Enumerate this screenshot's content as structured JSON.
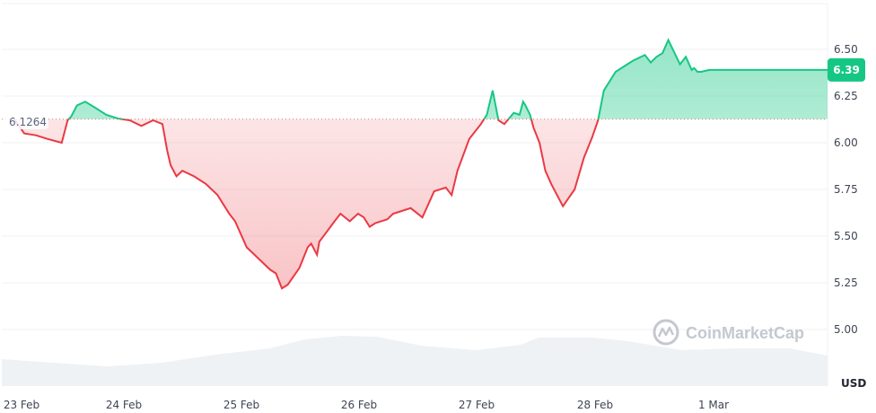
{
  "chart_data": {
    "type": "area",
    "watermark": "CoinMarketCap",
    "unit": "USD",
    "baseline": 6.1264,
    "baseline_label": "6.1264",
    "current_value": 6.39,
    "current_label": "6.39",
    "ylim": [
      4.84,
      6.67
    ],
    "y_ticks": [
      {
        "value": 6.5,
        "label": "6.50"
      },
      {
        "value": 6.25,
        "label": "6.25"
      },
      {
        "value": 6.0,
        "label": "6.00"
      },
      {
        "value": 5.75,
        "label": "5.75"
      },
      {
        "value": 5.5,
        "label": "5.50"
      },
      {
        "value": 5.25,
        "label": "5.25"
      },
      {
        "value": 5.0,
        "label": "5.00"
      }
    ],
    "x_ticks": [
      {
        "value": 0.0,
        "label": "23 Feb"
      },
      {
        "value": 1.0,
        "label": "24 Feb"
      },
      {
        "value": 2.0,
        "label": "25 Feb"
      },
      {
        "value": 3.0,
        "label": "26 Feb"
      },
      {
        "value": 4.0,
        "label": "27 Feb"
      },
      {
        "value": 5.0,
        "label": "28 Feb"
      },
      {
        "value": 6.0,
        "label": "1 Mar"
      }
    ],
    "xlim": [
      0.0,
      6.96
    ],
    "grid": true,
    "colors": {
      "up": "#16c784",
      "down": "#ea3943",
      "volume": "#eff2f5",
      "grid": "#eff2f5"
    },
    "series": [
      {
        "values_x": [
          0.0,
          0.1,
          0.2,
          0.3,
          0.42,
          0.47,
          0.5,
          0.55,
          0.62,
          0.7,
          0.8,
          0.9,
          1.0,
          1.1,
          1.2,
          1.28,
          1.32,
          1.35,
          1.4,
          1.45,
          1.55,
          1.65,
          1.75,
          1.85,
          1.9,
          2.0,
          2.1,
          2.2,
          2.25,
          2.3,
          2.35,
          2.45,
          2.52,
          2.55,
          2.6,
          2.62,
          2.68,
          2.75,
          2.8,
          2.88,
          2.95,
          3.0,
          3.05,
          3.1,
          3.2,
          3.25,
          3.3,
          3.4,
          3.5,
          3.6,
          3.7,
          3.75,
          3.8,
          3.9,
          4.0,
          4.05,
          4.1,
          4.15,
          4.2,
          4.28,
          4.33,
          4.36,
          4.38,
          4.42,
          4.45,
          4.5,
          4.55,
          4.6,
          4.7,
          4.8,
          4.88,
          4.95,
          5.0,
          5.05,
          5.15,
          5.25,
          5.3,
          5.4,
          5.45,
          5.5,
          5.55,
          5.6,
          5.7,
          5.75,
          5.8,
          5.82,
          5.85,
          5.88,
          5.95,
          6.0,
          6.05,
          6.15,
          6.25,
          6.35,
          6.45,
          6.55,
          6.6,
          6.65,
          6.72,
          6.78,
          6.82,
          6.88,
          6.92,
          6.96
        ],
        "values": [
          6.14,
          6.05,
          6.04,
          6.02,
          6.0,
          6.12,
          6.14,
          6.2,
          6.22,
          6.19,
          6.15,
          6.13,
          6.12,
          6.09,
          6.12,
          6.1,
          5.96,
          5.88,
          5.82,
          5.85,
          5.82,
          5.78,
          5.72,
          5.62,
          5.58,
          5.44,
          5.38,
          5.32,
          5.3,
          5.22,
          5.24,
          5.33,
          5.44,
          5.46,
          5.4,
          5.47,
          5.52,
          5.58,
          5.62,
          5.58,
          5.62,
          5.6,
          5.55,
          5.57,
          5.59,
          5.62,
          5.63,
          5.65,
          5.6,
          5.74,
          5.76,
          5.72,
          5.85,
          6.02,
          6.1,
          6.15,
          6.28,
          6.12,
          6.1,
          6.16,
          6.15,
          6.22,
          6.2,
          6.15,
          6.08,
          6.0,
          5.85,
          5.78,
          5.66,
          5.75,
          5.92,
          6.03,
          6.12,
          6.28,
          6.38,
          6.42,
          6.44,
          6.47,
          6.43,
          6.46,
          6.48,
          6.55,
          6.42,
          6.46,
          6.39,
          6.4,
          6.38,
          6.38,
          6.39,
          6.39,
          6.39,
          6.39,
          6.39,
          6.39,
          6.39,
          6.39,
          6.39,
          6.39,
          6.39,
          6.39,
          6.39,
          6.39,
          6.39,
          6.39
        ]
      }
    ]
  }
}
